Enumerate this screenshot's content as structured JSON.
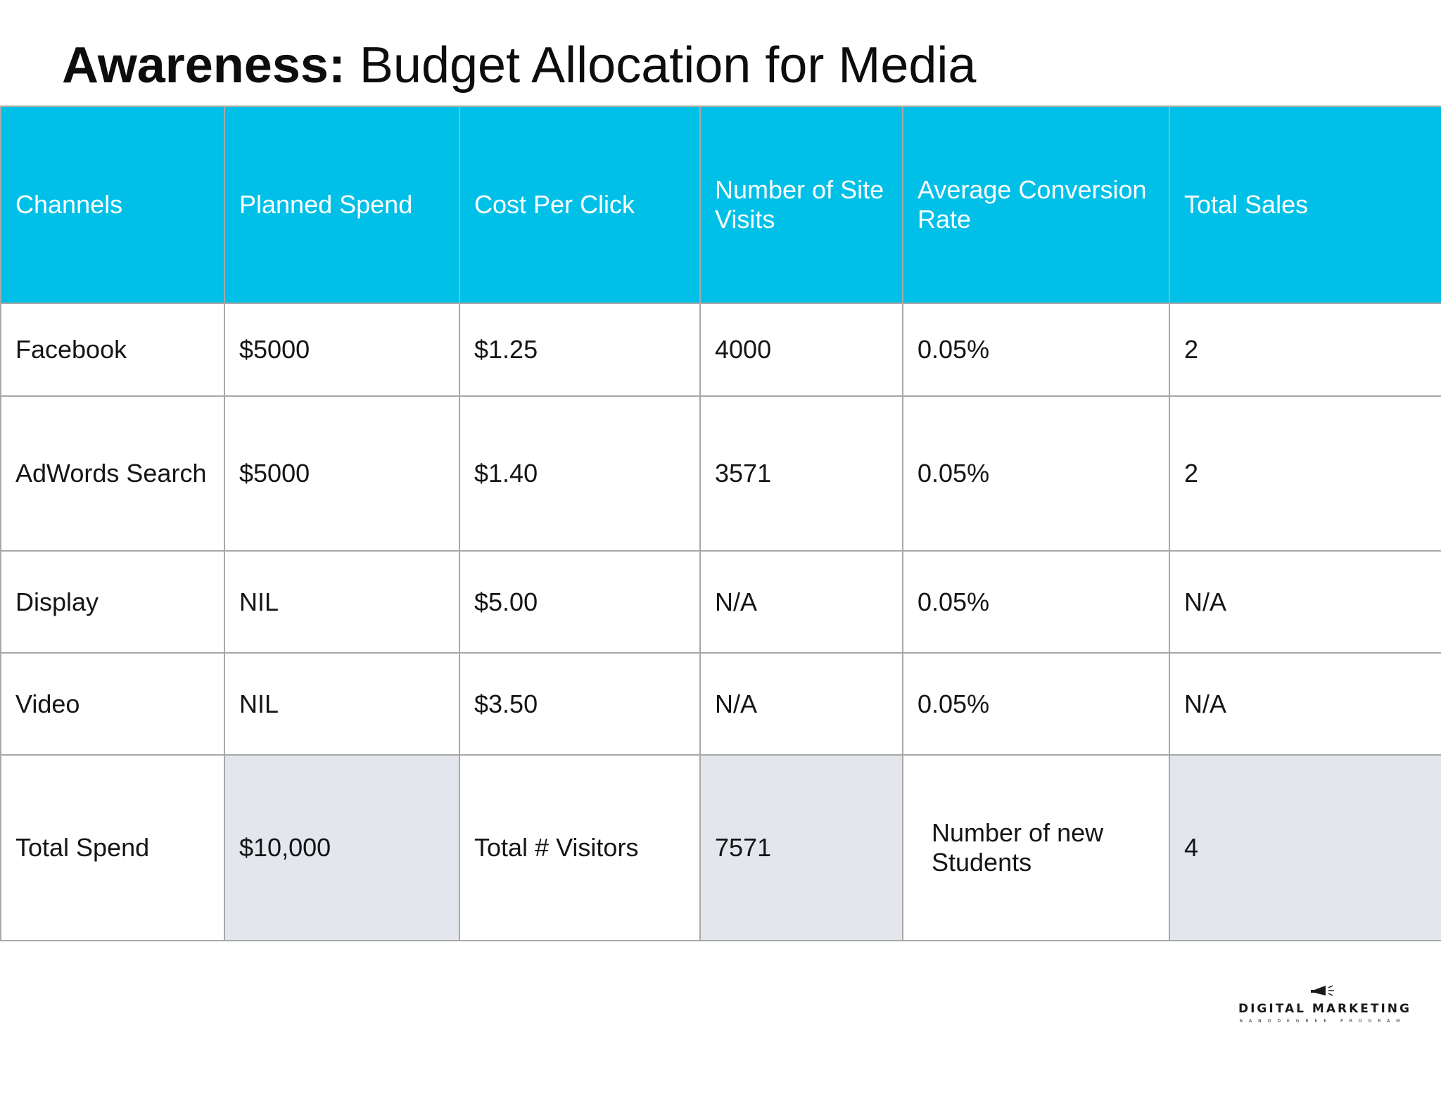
{
  "title": {
    "lead": "Awareness:",
    "rest": "Budget Allocation for Media"
  },
  "table": {
    "headers": [
      "Channels",
      "Planned Spend",
      "Cost Per Click",
      "Number of Site Visits",
      "Average Conversion Rate",
      "Total Sales"
    ],
    "rows": [
      [
        "Facebook",
        "$5000",
        "$1.25",
        "4000",
        "0.05%",
        "2"
      ],
      [
        "AdWords Search",
        "$5000",
        "$1.40",
        "3571",
        "0.05%",
        "2"
      ],
      [
        "Display",
        "NIL",
        "$5.00",
        "N/A",
        "0.05%",
        "N/A"
      ],
      [
        "Video",
        "NIL",
        "$3.50",
        "N/A",
        "0.05%",
        "N/A"
      ]
    ],
    "totals": {
      "spend_label": "Total Spend",
      "spend_value": "$10,000",
      "visitors_label": "Total # Visitors",
      "visitors_value": "7571",
      "students_label": "Number of new Students",
      "students_value": "4"
    }
  },
  "logo": {
    "main": "DIGITAL MARKETING",
    "sub": "NANODEGREE PROGRAM",
    "icon": "megaphone-icon"
  },
  "colors": {
    "header_bg": "#00c0e8",
    "shaded_cell": "#e3e6ed",
    "border": "#a8a8a8"
  }
}
